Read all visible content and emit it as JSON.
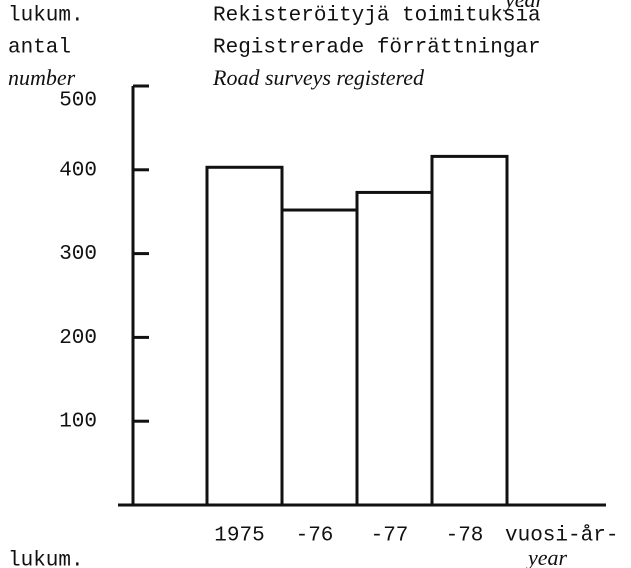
{
  "chart_data": {
    "type": "bar",
    "top_note": "year",
    "y_label_lines": [
      "lukum.",
      "antal",
      "number"
    ],
    "title_lines": [
      "Rekisteröityjä toimituksia",
      "Registrerade förrättningar",
      "Road surveys registered"
    ],
    "categories": [
      "1975",
      "-76",
      "-77",
      "-78"
    ],
    "values": [
      403,
      352,
      373,
      416
    ],
    "x_label_lines": [
      "vuosi-år-",
      "year"
    ],
    "footer": "lukum.",
    "ylim": [
      0,
      500
    ],
    "yticks": [
      100,
      200,
      300,
      400,
      500
    ],
    "color": "#ffffff"
  }
}
